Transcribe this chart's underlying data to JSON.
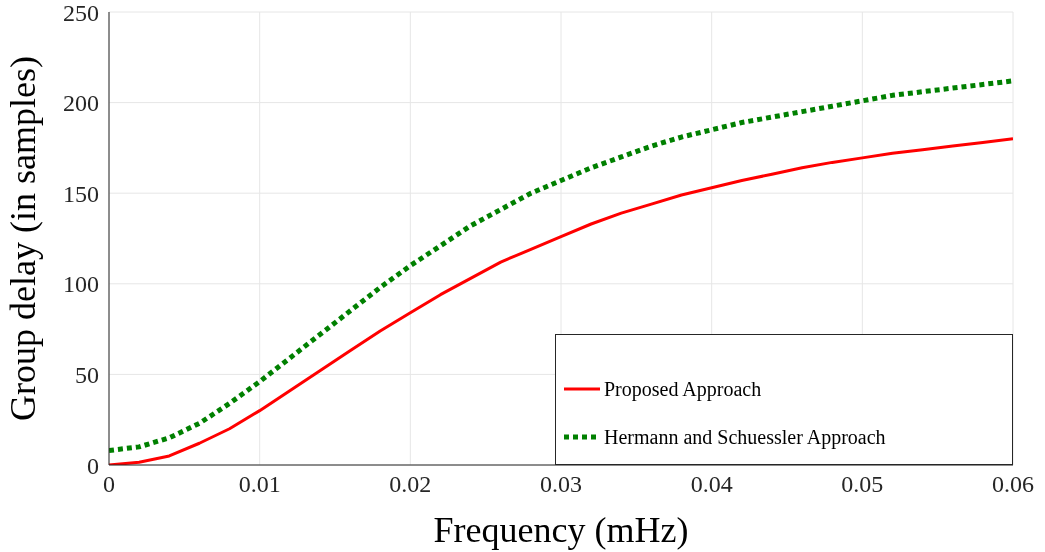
{
  "chart_data": {
    "type": "line",
    "xlabel": "Frequency (mHz)",
    "ylabel": "Group delay (in samples)",
    "x": [
      0,
      0.002,
      0.004,
      0.006,
      0.008,
      0.01,
      0.012,
      0.014,
      0.016,
      0.018,
      0.02,
      0.022,
      0.024,
      0.026,
      0.028,
      0.03,
      0.032,
      0.034,
      0.036,
      0.038,
      0.04,
      0.042,
      0.044,
      0.046,
      0.048,
      0.05,
      0.052,
      0.054,
      0.056,
      0.058,
      0.06
    ],
    "series": [
      {
        "name": "Proposed Approach",
        "color": "#ff0000",
        "line_style": "solid",
        "values": [
          0,
          1.5,
          5,
          12,
          20,
          30,
          41,
          52,
          63,
          74,
          84,
          94,
          103,
          112,
          119,
          126,
          133,
          139,
          144,
          149,
          153,
          157,
          160.5,
          164,
          167,
          169.5,
          172,
          174,
          176,
          178,
          180
        ]
      },
      {
        "name": "Hermann and Schuessler Approach",
        "color": "#008000",
        "line_style": "dotted",
        "values": [
          8,
          10,
          15,
          23,
          34,
          46,
          59,
          72,
          85,
          98,
          110,
          121,
          132,
          141,
          150,
          157,
          164,
          170,
          176,
          181,
          185,
          189,
          192,
          195,
          198,
          201,
          204,
          206,
          208,
          210,
          212
        ]
      }
    ],
    "xlim": [
      0,
      0.06
    ],
    "xticks": [
      0,
      0.01,
      0.02,
      0.03,
      0.04,
      0.05,
      0.06
    ],
    "ylim": [
      0,
      250
    ],
    "yticks": [
      0,
      50,
      100,
      150,
      200,
      250
    ],
    "grid": true,
    "legend": "bottom right",
    "marker": "none"
  }
}
